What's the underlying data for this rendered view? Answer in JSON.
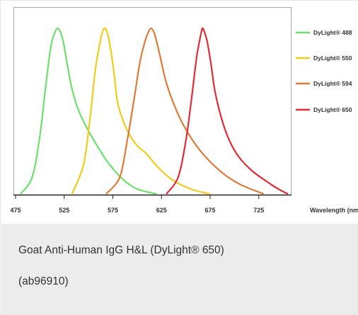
{
  "chart_data": {
    "type": "line",
    "title": "",
    "xlabel": "Wavelength (nm)",
    "ylabel": "",
    "xlim": [
      475,
      755
    ],
    "ylim": [
      0,
      100
    ],
    "x_ticks": [
      475,
      525,
      575,
      625,
      675,
      725
    ],
    "grid": false,
    "legend_position": "right",
    "series": [
      {
        "name": "DyLight® 488",
        "color": "#6be06b",
        "x": [
          480,
          492,
          500,
          506,
          511,
          515,
          518,
          521,
          524,
          527,
          532,
          537,
          543,
          550,
          560,
          570,
          585,
          600,
          620
        ],
        "y": [
          0,
          10,
          35,
          65,
          88,
          97,
          100,
          98,
          92,
          82,
          66,
          55,
          46,
          38,
          28,
          19,
          9,
          3,
          0
        ]
      },
      {
        "name": "DyLight® 550",
        "color": "#f2cc1a",
        "x": [
          533,
          545,
          552,
          557,
          562,
          565,
          567,
          569,
          572,
          576,
          580,
          587,
          595,
          602,
          610,
          620,
          635,
          655,
          675
        ],
        "y": [
          0,
          18,
          48,
          75,
          92,
          99,
          100,
          98,
          90,
          74,
          55,
          42,
          33,
          28,
          24,
          17,
          9,
          3,
          0
        ]
      },
      {
        "name": "DyLight® 594",
        "color": "#e07a38",
        "x": [
          568,
          582,
          590,
          597,
          603,
          608,
          611,
          614,
          617,
          620,
          624,
          630,
          640,
          650,
          665,
          685,
          705,
          730
        ],
        "y": [
          0,
          10,
          33,
          58,
          80,
          92,
          97,
          100,
          98,
          92,
          82,
          67,
          51,
          39,
          26,
          14,
          6,
          0
        ]
      },
      {
        "name": "DyLight® 650",
        "color": "#e02c36",
        "x": [
          630,
          642,
          650,
          656,
          661,
          665,
          667,
          669,
          672,
          676,
          680,
          687,
          695,
          705,
          718,
          732,
          745,
          755
        ],
        "y": [
          0,
          10,
          32,
          58,
          82,
          95,
          100,
          98,
          92,
          78,
          62,
          45,
          32,
          22,
          14,
          8,
          3,
          0
        ]
      }
    ]
  },
  "caption": {
    "line1": "Goat Anti-Human IgG H&L (DyLight® 650)",
    "line2": "(ab96910)"
  }
}
